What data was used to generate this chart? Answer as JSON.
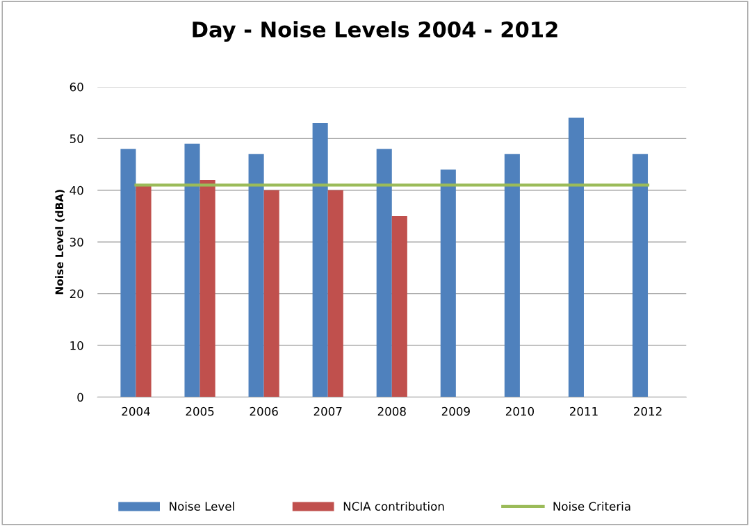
{
  "chart_data": {
    "type": "bar",
    "title": "Day - Noise Levels 2004 - 2012",
    "ylabel": "Noise Level (dBA)",
    "categories": [
      "2004",
      "2005",
      "2006",
      "2007",
      "2008",
      "2009",
      "2010",
      "2011",
      "2012"
    ],
    "series": [
      {
        "name": "Noise Level",
        "color": "#4f81bd",
        "values": [
          48,
          49,
          47,
          53,
          48,
          44,
          47,
          54,
          47
        ]
      },
      {
        "name": "NCIA contribution",
        "color": "#c0504d",
        "values": [
          41,
          42,
          40,
          40,
          35,
          null,
          null,
          null,
          null
        ]
      },
      {
        "name": "Noise Criteria",
        "type": "line",
        "color": "#9bbb59",
        "values": [
          41,
          41,
          41,
          41,
          41,
          41,
          41,
          41,
          41
        ]
      }
    ],
    "ylim": [
      0,
      60
    ],
    "yticks": [
      0,
      10,
      20,
      30,
      40,
      50,
      60
    ],
    "grid": "y",
    "legend": "bottom",
    "marker": "none",
    "line_style": "solid"
  }
}
